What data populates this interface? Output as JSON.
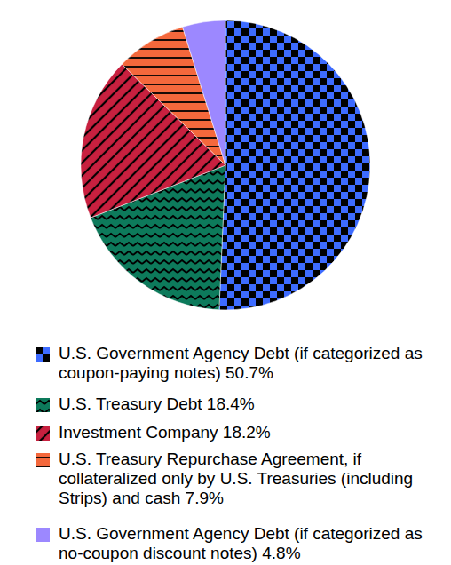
{
  "chart_data": {
    "type": "pie",
    "categories": [
      "U.S. Government Agency Debt (if categorized as coupon-paying notes)",
      "U.S. Treasury Debt",
      "Investment Company",
      "U.S. Treasury Repurchase Agreement, if collateralized only by U.S. Treasuries (including Strips) and cash",
      "U.S. Government Agency Debt (if categorized as no-coupon discount notes)"
    ],
    "values": [
      50.7,
      18.4,
      18.2,
      7.9,
      4.8
    ],
    "value_labels": [
      "50.7%",
      "18.4%",
      "18.2%",
      "7.9%",
      "4.8%"
    ],
    "colors": [
      "#3d6bff",
      "#0d7a5b",
      "#c8203f",
      "#f4683c",
      "#9c88ff"
    ],
    "legend": "bottom"
  }
}
